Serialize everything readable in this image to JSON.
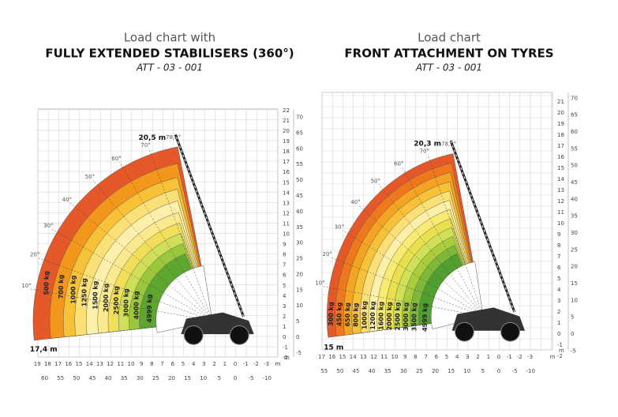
{
  "panels": [
    {
      "title": "Load chart with",
      "subtitle": "FULLY EXTENDED STABILISERS (360°)",
      "code": "ATT - 03 - 001",
      "max_height": "20,5 m",
      "max_reach": "17,4 m",
      "angles": [
        "78,9°",
        "70°",
        "60°",
        "50°",
        "40°",
        "30°",
        "20°",
        "10°"
      ],
      "loads": [
        "500 kg",
        "700 kg",
        "1000 kg",
        "1250 kg",
        "1500 kg",
        "2000 kg",
        "2500 kg",
        "3000 kg",
        "4000 kg",
        "4999 kg"
      ],
      "x_ticks_m": [
        "19",
        "18",
        "17",
        "16",
        "15",
        "14",
        "13",
        "12",
        "11",
        "10",
        "9",
        "8",
        "7",
        "6",
        "5",
        "4",
        "3",
        "2",
        "1",
        "0",
        "-1",
        "-2",
        "-3"
      ],
      "x_ticks_ft": [
        "60",
        "55",
        "50",
        "45",
        "40",
        "35",
        "30",
        "25",
        "20",
        "15",
        "10",
        "5",
        "0",
        "-5",
        "-10"
      ],
      "y_ticks_m": [
        "22",
        "21",
        "20",
        "19",
        "18",
        "17",
        "16",
        "15",
        "14",
        "13",
        "12",
        "11",
        "10",
        "9",
        "8",
        "7",
        "6",
        "5",
        "4",
        "3",
        "2",
        "1",
        "0",
        "-1",
        "-2"
      ],
      "y_ticks_ft": [
        "70",
        "65",
        "60",
        "55",
        "50",
        "45",
        "40",
        "35",
        "30",
        "25",
        "20",
        "15",
        "10",
        "5",
        "0",
        "-5"
      ],
      "unit": "m"
    },
    {
      "title": "Load chart",
      "subtitle": "FRONT ATTACHMENT ON TYRES",
      "code": "ATT - 03 - 001",
      "max_height": "20,3 m",
      "max_reach": "15 m",
      "angles": [
        "78,9°",
        "70°",
        "60°",
        "50°",
        "40°",
        "30°",
        "20°",
        "10°"
      ],
      "loads": [
        "300 kg",
        "450 kg",
        "650 kg",
        "800 kg",
        "1000 kg",
        "1200 kg",
        "1600 kg",
        "2000 kg",
        "2500 kg",
        "3000 kg",
        "3500 kg",
        "4999 kg"
      ],
      "x_ticks_m": [
        "17",
        "16",
        "15",
        "14",
        "13",
        "12",
        "11",
        "10",
        "9",
        "8",
        "7",
        "6",
        "5",
        "4",
        "3",
        "2",
        "1",
        "0",
        "-1",
        "-2",
        "-3"
      ],
      "x_ticks_ft": [
        "55",
        "50",
        "45",
        "40",
        "35",
        "30",
        "25",
        "20",
        "15",
        "10",
        "5",
        "0",
        "-5",
        "-10"
      ],
      "y_ticks_m": [
        "21",
        "20",
        "19",
        "18",
        "17",
        "16",
        "15",
        "14",
        "13",
        "12",
        "11",
        "10",
        "9",
        "8",
        "7",
        "6",
        "5",
        "4",
        "3",
        "2",
        "1",
        "0",
        "-1",
        "-2"
      ],
      "y_ticks_ft": [
        "70",
        "65",
        "60",
        "55",
        "50",
        "45",
        "40",
        "35",
        "30",
        "25",
        "20",
        "15",
        "10",
        "5",
        "0",
        "-5"
      ],
      "unit": "m"
    }
  ]
}
